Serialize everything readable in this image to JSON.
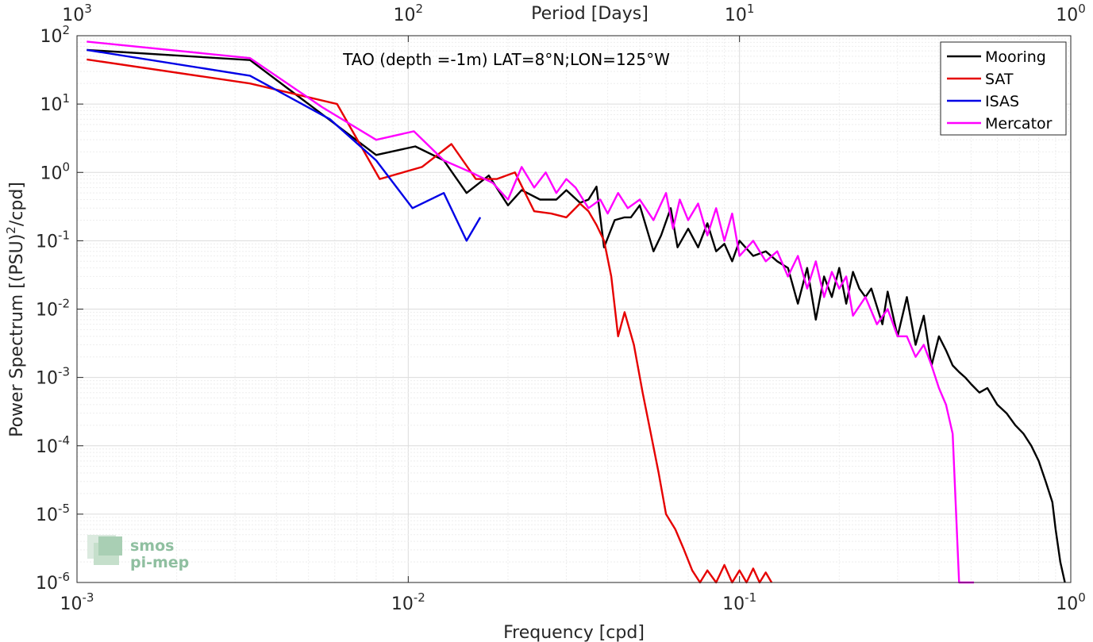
{
  "chart_data": {
    "type": "line",
    "title": "TAO (depth =-1m) LAT=8°N;LON=125°W",
    "xlabel": "Frequency [cpd]",
    "ylabel": "Power Spectrum [(PSU)",
    "ylabel_sup": "2",
    "ylabel_tail": "/cpd]",
    "top_xlabel": "Period [Days]",
    "xscale": "log",
    "yscale": "log",
    "xlim": [
      0.001,
      1
    ],
    "ylim": [
      1e-06,
      100
    ],
    "grid": true,
    "legend_position": "top-right",
    "xticks": [
      {
        "base": "10",
        "exp": "-3"
      },
      {
        "base": "10",
        "exp": "-2"
      },
      {
        "base": "10",
        "exp": "-1"
      },
      {
        "base": "10",
        "exp": "0"
      }
    ],
    "yticks": [
      {
        "base": "10",
        "exp": "-6"
      },
      {
        "base": "10",
        "exp": "-5"
      },
      {
        "base": "10",
        "exp": "-4"
      },
      {
        "base": "10",
        "exp": "-3"
      },
      {
        "base": "10",
        "exp": "-2"
      },
      {
        "base": "10",
        "exp": "-1"
      },
      {
        "base": "10",
        "exp": "0"
      },
      {
        "base": "10",
        "exp": "1"
      },
      {
        "base": "10",
        "exp": "2"
      }
    ],
    "top_ticks": [
      {
        "base": "10",
        "exp": "3"
      },
      {
        "base": "10",
        "exp": "2"
      },
      {
        "base": "10",
        "exp": "1"
      },
      {
        "base": "10",
        "exp": "0"
      }
    ],
    "series": [
      {
        "name": "Mooring",
        "color": "#000000",
        "x": [
          0.00107,
          0.00333,
          0.005,
          0.008,
          0.0105,
          0.0128,
          0.015,
          0.0175,
          0.02,
          0.022,
          0.025,
          0.028,
          0.03,
          0.033,
          0.035,
          0.037,
          0.039,
          0.042,
          0.045,
          0.047,
          0.05,
          0.055,
          0.058,
          0.062,
          0.065,
          0.07,
          0.075,
          0.08,
          0.085,
          0.09,
          0.095,
          0.1,
          0.11,
          0.12,
          0.13,
          0.14,
          0.15,
          0.16,
          0.17,
          0.18,
          0.19,
          0.2,
          0.21,
          0.22,
          0.23,
          0.24,
          0.25,
          0.27,
          0.28,
          0.3,
          0.32,
          0.34,
          0.36,
          0.38,
          0.4,
          0.42,
          0.44,
          0.46,
          0.48,
          0.5,
          0.53,
          0.56,
          0.6,
          0.64,
          0.68,
          0.72,
          0.76,
          0.8,
          0.84,
          0.88,
          0.9,
          0.93,
          0.96
        ],
        "y": [
          62,
          44,
          10,
          1.8,
          2.4,
          1.5,
          0.5,
          0.9,
          0.33,
          0.55,
          0.4,
          0.4,
          0.55,
          0.36,
          0.4,
          0.62,
          0.08,
          0.2,
          0.22,
          0.22,
          0.33,
          0.07,
          0.12,
          0.3,
          0.08,
          0.15,
          0.08,
          0.18,
          0.07,
          0.09,
          0.05,
          0.1,
          0.06,
          0.07,
          0.05,
          0.04,
          0.012,
          0.04,
          0.007,
          0.03,
          0.015,
          0.04,
          0.012,
          0.035,
          0.02,
          0.015,
          0.02,
          0.006,
          0.018,
          0.004,
          0.015,
          0.003,
          0.008,
          0.0015,
          0.004,
          0.0025,
          0.0015,
          0.0012,
          0.001,
          0.0008,
          0.0006,
          0.0007,
          0.0004,
          0.0003,
          0.0002,
          0.00015,
          0.0001,
          6e-05,
          3e-05,
          1.5e-05,
          6e-06,
          2e-06,
          1e-06
        ]
      },
      {
        "name": "SAT",
        "color": "#e60000",
        "x": [
          0.00107,
          0.00333,
          0.0061,
          0.0082,
          0.011,
          0.0135,
          0.016,
          0.0185,
          0.021,
          0.024,
          0.027,
          0.03,
          0.033,
          0.035,
          0.037,
          0.039,
          0.041,
          0.043,
          0.045,
          0.048,
          0.051,
          0.054,
          0.057,
          0.06,
          0.064,
          0.068,
          0.072,
          0.076,
          0.08,
          0.085,
          0.09,
          0.095,
          0.1,
          0.105,
          0.11,
          0.115,
          0.12,
          0.125
        ],
        "y": [
          45,
          20,
          10,
          0.8,
          1.2,
          2.6,
          0.8,
          0.8,
          1.0,
          0.27,
          0.25,
          0.22,
          0.35,
          0.27,
          0.17,
          0.1,
          0.03,
          0.004,
          0.009,
          0.003,
          0.0006,
          0.00015,
          4e-05,
          1e-05,
          6e-06,
          3e-06,
          1.5e-06,
          1e-06,
          1.5e-06,
          1e-06,
          1.8e-06,
          1e-06,
          1.5e-06,
          1e-06,
          1.6e-06,
          1e-06,
          1.4e-06,
          1e-06
        ]
      },
      {
        "name": "ISAS",
        "color": "#0000e6",
        "x": [
          0.00107,
          0.00333,
          0.0058,
          0.008,
          0.0103,
          0.0128,
          0.015,
          0.0165
        ],
        "y": [
          62,
          26,
          6,
          1.5,
          0.3,
          0.5,
          0.1,
          0.22
        ]
      },
      {
        "name": "Mercator",
        "color": "#ff00ff",
        "x": [
          0.00107,
          0.00333,
          0.0055,
          0.008,
          0.0104,
          0.0128,
          0.0155,
          0.018,
          0.02,
          0.022,
          0.024,
          0.026,
          0.028,
          0.03,
          0.032,
          0.035,
          0.038,
          0.04,
          0.043,
          0.046,
          0.05,
          0.055,
          0.06,
          0.063,
          0.066,
          0.07,
          0.075,
          0.08,
          0.085,
          0.09,
          0.095,
          0.1,
          0.11,
          0.12,
          0.13,
          0.14,
          0.15,
          0.16,
          0.17,
          0.18,
          0.19,
          0.2,
          0.21,
          0.22,
          0.24,
          0.26,
          0.28,
          0.3,
          0.32,
          0.34,
          0.36,
          0.38,
          0.4,
          0.42,
          0.44,
          0.46,
          0.48,
          0.5,
          0.51
        ],
        "y": [
          82,
          47,
          9,
          3,
          4,
          1.5,
          1.0,
          0.7,
          0.4,
          1.2,
          0.6,
          1.0,
          0.5,
          0.8,
          0.6,
          0.3,
          0.4,
          0.25,
          0.5,
          0.3,
          0.4,
          0.2,
          0.5,
          0.15,
          0.4,
          0.2,
          0.35,
          0.12,
          0.3,
          0.1,
          0.25,
          0.06,
          0.1,
          0.05,
          0.07,
          0.03,
          0.06,
          0.02,
          0.05,
          0.015,
          0.035,
          0.02,
          0.03,
          0.008,
          0.015,
          0.006,
          0.01,
          0.004,
          0.004,
          0.002,
          0.003,
          0.0015,
          0.0007,
          0.0004,
          0.00015,
          0.0,
          0.0,
          1e-06,
          9e-07
        ]
      }
    ]
  },
  "logo": {
    "line1": "smos",
    "line2": "pi-mep"
  }
}
